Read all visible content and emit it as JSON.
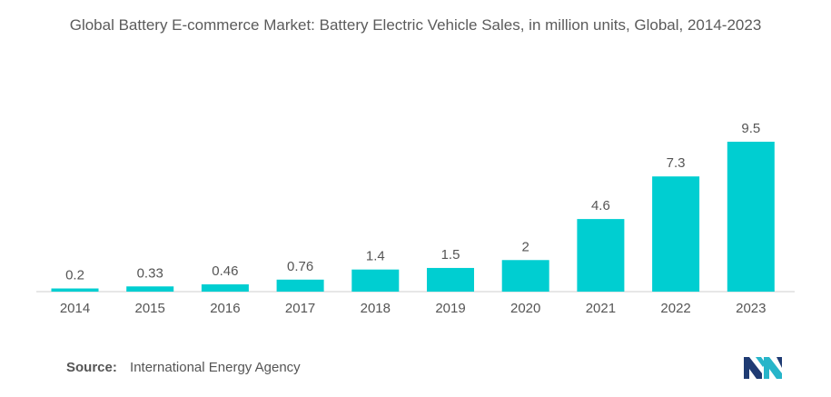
{
  "title": "Global Battery E-commerce Market: Battery Electric Vehicle Sales, in million units, Global, 2014-2023",
  "source": {
    "label": "Source:",
    "text": "International Energy Agency"
  },
  "colors": {
    "bar": "#00CED1",
    "text": "#555555",
    "axis": "#cfcfcf"
  },
  "chart_data": {
    "type": "bar",
    "categories": [
      "2014",
      "2015",
      "2016",
      "2017",
      "2018",
      "2019",
      "2020",
      "2021",
      "2022",
      "2023"
    ],
    "values": [
      0.2,
      0.33,
      0.46,
      0.76,
      1.4,
      1.5,
      2,
      4.6,
      7.3,
      9.5
    ],
    "value_labels": [
      "0.2",
      "0.33",
      "0.46",
      "0.76",
      "1.4",
      "1.5",
      "2",
      "4.6",
      "7.3",
      "9.5"
    ],
    "title": "Global Battery E-commerce Market: Battery Electric Vehicle Sales, in million units, Global, 2014-2023",
    "xlabel": "",
    "ylabel": "",
    "ylim": [
      0,
      9.5
    ],
    "grid": false,
    "legend": "none"
  }
}
